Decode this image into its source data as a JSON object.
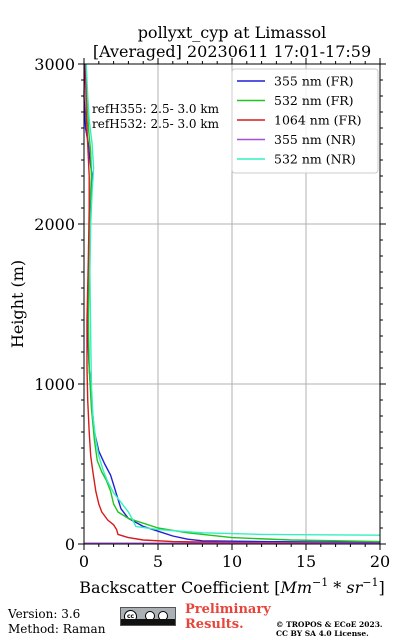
{
  "chart_data": {
    "type": "line",
    "title_line1": "pollyxt_cyp at Limassol",
    "title_line2": "[Averaged] 20230611 17:01-17:59",
    "ylabel": "Height (m)",
    "xlabel_text": "Backscatter Coefficient [",
    "xlabel_unit_a": "Mm",
    "xlabel_unit_b": "−1",
    "xlabel_unit_c": " * sr",
    "xlabel_unit_d": "−1",
    "xlabel_close": "]",
    "xlim": [
      0,
      20
    ],
    "ylim": [
      0,
      3000
    ],
    "xticks": [
      "0",
      "5",
      "10",
      "15",
      "20"
    ],
    "yticks": [
      "0",
      "1000",
      "2000",
      "3000"
    ],
    "grid": true,
    "legend_position": "upper-right",
    "annotations": [
      "refH355:  2.5- 3.0 km",
      "refH532:  2.5- 3.0 km"
    ],
    "series": [
      {
        "name": "355 nm (FR)",
        "color": "#1f1fd6",
        "points": [
          [
            20,
            10
          ],
          [
            12,
            15
          ],
          [
            8,
            20
          ],
          [
            7,
            30
          ],
          [
            6,
            50
          ],
          [
            5,
            80
          ],
          [
            4,
            110
          ],
          [
            3,
            160
          ],
          [
            2.5,
            220
          ],
          [
            2.3,
            280
          ],
          [
            2,
            370
          ],
          [
            1.8,
            430
          ],
          [
            1.4,
            500
          ],
          [
            1,
            580
          ],
          [
            0.7,
            700
          ],
          [
            0.5,
            900
          ],
          [
            0.35,
            1100
          ],
          [
            0.25,
            1300
          ],
          [
            0.3,
            1600
          ],
          [
            0.4,
            1900
          ],
          [
            0.45,
            2100
          ],
          [
            0.5,
            2200
          ],
          [
            0.55,
            2300
          ],
          [
            0.4,
            2400
          ],
          [
            0.3,
            2500
          ],
          [
            0.1,
            2600
          ],
          [
            0.0,
            2800
          ],
          [
            0.05,
            3000
          ]
        ]
      },
      {
        "name": "532 nm (FR)",
        "color": "#22c422",
        "points": [
          [
            20,
            15
          ],
          [
            14,
            25
          ],
          [
            10,
            40
          ],
          [
            7,
            70
          ],
          [
            5,
            100
          ],
          [
            4,
            130
          ],
          [
            3,
            160
          ],
          [
            2.3,
            200
          ],
          [
            2,
            250
          ],
          [
            1.8,
            330
          ],
          [
            1.5,
            400
          ],
          [
            1.2,
            450
          ],
          [
            0.9,
            520
          ],
          [
            0.7,
            650
          ],
          [
            0.5,
            850
          ],
          [
            0.35,
            1100
          ],
          [
            0.3,
            1400
          ],
          [
            0.35,
            1800
          ],
          [
            0.4,
            2100
          ],
          [
            0.5,
            2300
          ],
          [
            0.45,
            2450
          ],
          [
            0.3,
            2600
          ],
          [
            0.2,
            2800
          ],
          [
            0.15,
            3000
          ]
        ]
      },
      {
        "name": "1064 nm (FR)",
        "color": "#d81a1a",
        "points": [
          [
            20,
            5
          ],
          [
            10,
            10
          ],
          [
            6,
            15
          ],
          [
            4,
            25
          ],
          [
            3,
            40
          ],
          [
            2.3,
            60
          ],
          [
            2.2,
            90
          ],
          [
            2,
            120
          ],
          [
            1.6,
            150
          ],
          [
            1.2,
            200
          ],
          [
            1,
            250
          ],
          [
            0.8,
            330
          ],
          [
            0.6,
            450
          ],
          [
            0.45,
            550
          ],
          [
            0.35,
            700
          ],
          [
            0.25,
            900
          ],
          [
            0.2,
            1100
          ],
          [
            0.2,
            1400
          ],
          [
            0.3,
            1800
          ],
          [
            0.35,
            2100
          ],
          [
            0.35,
            2300
          ],
          [
            0.25,
            2500
          ],
          [
            0.15,
            2700
          ],
          [
            0.1,
            3000
          ]
        ]
      },
      {
        "name": "355 nm (NR)",
        "color": "#a64fd6",
        "points": [
          [
            20,
            5
          ],
          [
            0,
            5
          ]
        ]
      },
      {
        "name": "532 nm (NR)",
        "color": "#33f0c0",
        "points": [
          [
            20,
            55
          ],
          [
            12,
            60
          ],
          [
            8,
            70
          ],
          [
            5,
            90
          ],
          [
            3.5,
            110
          ],
          [
            3.3,
            150
          ],
          [
            3,
            200
          ],
          [
            2.5,
            260
          ],
          [
            2,
            320
          ],
          [
            1.6,
            390
          ],
          [
            1.3,
            460
          ],
          [
            1,
            550
          ],
          [
            0.8,
            650
          ],
          [
            0.6,
            800
          ],
          [
            0.5,
            1000
          ],
          [
            0.45,
            1300
          ],
          [
            0.4,
            1700
          ],
          [
            0.45,
            2000
          ],
          [
            0.55,
            2200
          ],
          [
            0.65,
            2350
          ],
          [
            0.55,
            2500
          ],
          [
            0.35,
            2650
          ],
          [
            0.25,
            2800
          ],
          [
            0.15,
            3000
          ]
        ]
      }
    ]
  },
  "footer": {
    "version": "Version: 3.6",
    "method": "Method: Raman",
    "prelim_line1": "Preliminary",
    "prelim_line2": "Results.",
    "copyright_line1": "© TROPOS & ECoE 2023.",
    "copyright_line2": "CC BY SA 4.0 License.",
    "cc_badge": "cc"
  }
}
